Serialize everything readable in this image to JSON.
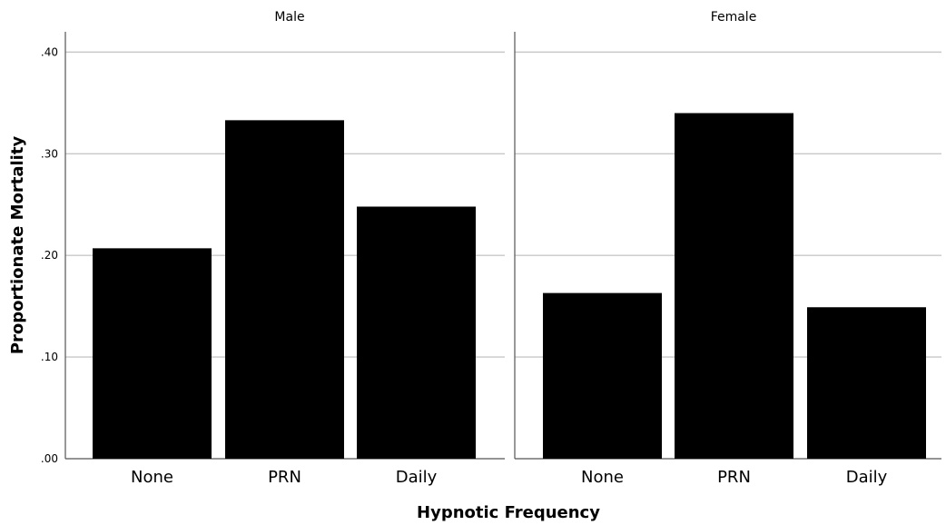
{
  "chart_data": {
    "type": "bar",
    "xlabel": "Hypnotic Frequency",
    "ylabel": "Proportionate Mortality",
    "ylim": [
      0,
      0.42
    ],
    "yticks": [
      0,
      0.1,
      0.2,
      0.3,
      0.4
    ],
    "ytick_labels": [
      ".00",
      ".10",
      ".20",
      ".30",
      ".40"
    ],
    "grid": true,
    "bar_color": "#000000",
    "panels": [
      {
        "title": "Male",
        "categories": [
          "None",
          "PRN",
          "Daily"
        ],
        "values": [
          0.207,
          0.333,
          0.248
        ]
      },
      {
        "title": "Female",
        "categories": [
          "None",
          "PRN",
          "Daily"
        ],
        "values": [
          0.163,
          0.34,
          0.149
        ]
      }
    ]
  }
}
